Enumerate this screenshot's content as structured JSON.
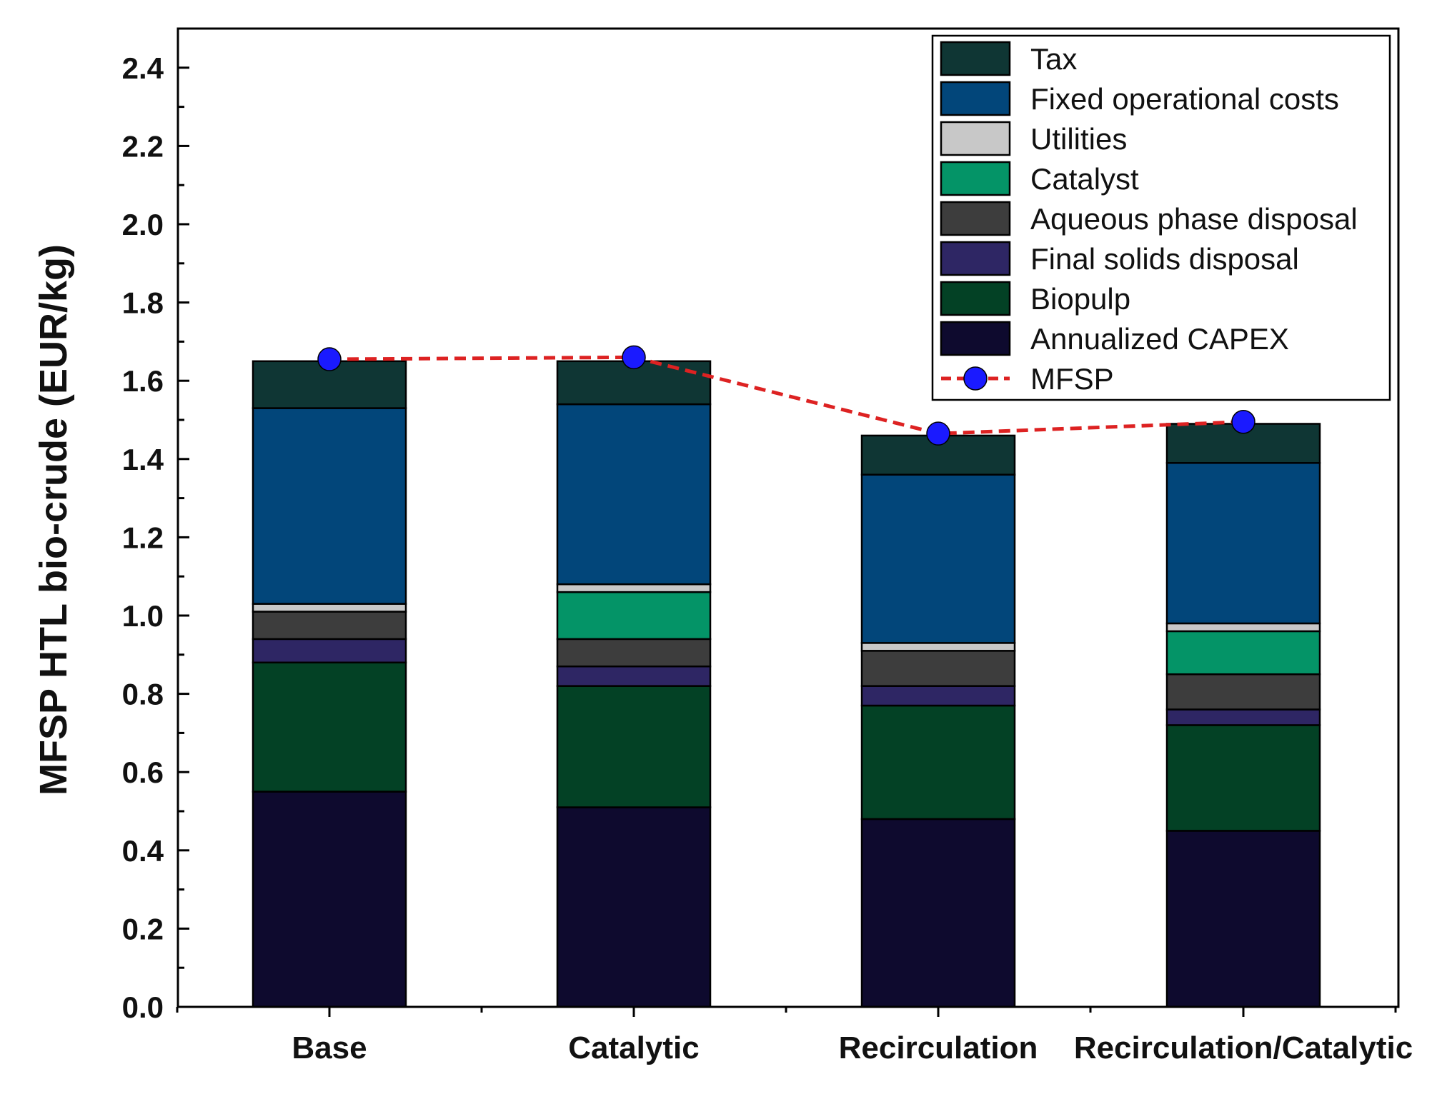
{
  "chart_data": {
    "type": "bar",
    "stacked": true,
    "title": "",
    "xlabel": "",
    "ylabel": "MFSP HTL bio-crude (EUR/kg)",
    "ylim": [
      0,
      2.5
    ],
    "yticks": [
      "0.0",
      "0.2",
      "0.4",
      "0.6",
      "0.8",
      "1.0",
      "1.2",
      "1.4",
      "1.6",
      "1.8",
      "2.0",
      "2.2",
      "2.4"
    ],
    "categories": [
      "Base",
      "Catalytic",
      "Recirculation",
      "Recirculation/Catalytic"
    ],
    "series": [
      {
        "name": "Annualized CAPEX",
        "color": "#0e0a2e",
        "values": [
          0.55,
          0.51,
          0.48,
          0.45
        ]
      },
      {
        "name": "Biopulp",
        "color": "#034125",
        "values": [
          0.33,
          0.31,
          0.29,
          0.27
        ]
      },
      {
        "name": "Final solids disposal",
        "color": "#2e2664",
        "values": [
          0.06,
          0.05,
          0.05,
          0.04
        ]
      },
      {
        "name": "Aqueous phase disposal",
        "color": "#3d3d3d",
        "values": [
          0.07,
          0.07,
          0.09,
          0.09
        ]
      },
      {
        "name": "Catalyst",
        "color": "#049467",
        "values": [
          0.0,
          0.12,
          0.0,
          0.11
        ]
      },
      {
        "name": "Utilities",
        "color": "#c8c8c8",
        "values": [
          0.02,
          0.02,
          0.02,
          0.02
        ]
      },
      {
        "name": "Fixed operational costs",
        "color": "#02467a",
        "values": [
          0.5,
          0.46,
          0.43,
          0.41
        ]
      },
      {
        "name": "Tax",
        "color": "#0f3634",
        "values": [
          0.12,
          0.11,
          0.1,
          0.1
        ]
      }
    ],
    "line_series": {
      "name": "MFSP",
      "color": "#dd2222",
      "marker_color": "#1a1aff",
      "values": [
        1.655,
        1.66,
        1.465,
        1.495
      ]
    },
    "legend": {
      "position": "top-right",
      "order": [
        "Tax",
        "Fixed operational costs",
        "Utilities",
        "Catalyst",
        "Aqueous phase disposal",
        "Final solids disposal",
        "Biopulp",
        "Annualized CAPEX",
        "MFSP"
      ]
    }
  }
}
